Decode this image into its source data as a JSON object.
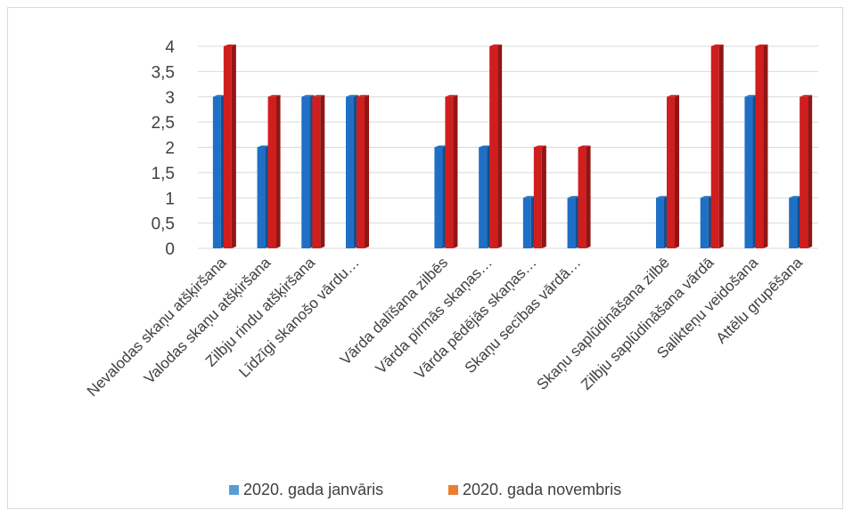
{
  "chart_data": {
    "type": "bar",
    "categories": [
      "Nevalodas skaņu atšķiršana",
      "Valodas skaņu atšķiršana",
      "Zilbju rindu atšķiršana",
      "Līdzīgi skanošo vārdu…",
      "",
      "Vārda dalīšana zilbēs",
      "Vārda pirmās skaņas…",
      "Vārda pēdējās skaņas…",
      "Skaņu secības vārdā…",
      "",
      "Skaņu saplūdināšana zilbē",
      "Zilbju saplūdināšana vārdā",
      "Salikteņu veidošana",
      "Attēlu grupēšana"
    ],
    "series": [
      {
        "name": "2020. gada janvāris",
        "color": "#1f6fc6",
        "values": [
          3,
          2,
          3,
          3,
          null,
          2,
          2,
          1,
          1,
          null,
          1,
          1,
          3,
          1
        ]
      },
      {
        "name": "2020. gada novembris",
        "color": "#d01e1e",
        "values": [
          4,
          3,
          3,
          3,
          null,
          3,
          4,
          2,
          2,
          null,
          3,
          4,
          4,
          3
        ]
      }
    ],
    "legend_swatch_colors": [
      "#5b9bd5",
      "#ed7d31"
    ],
    "y_ticks": [
      "0",
      "0,5",
      "1",
      "1,5",
      "2",
      "2,5",
      "3",
      "3,5",
      "4"
    ],
    "ylim": [
      0,
      4
    ],
    "grid": true,
    "legend_position": "bottom",
    "title": "",
    "xlabel": "",
    "ylabel": ""
  }
}
